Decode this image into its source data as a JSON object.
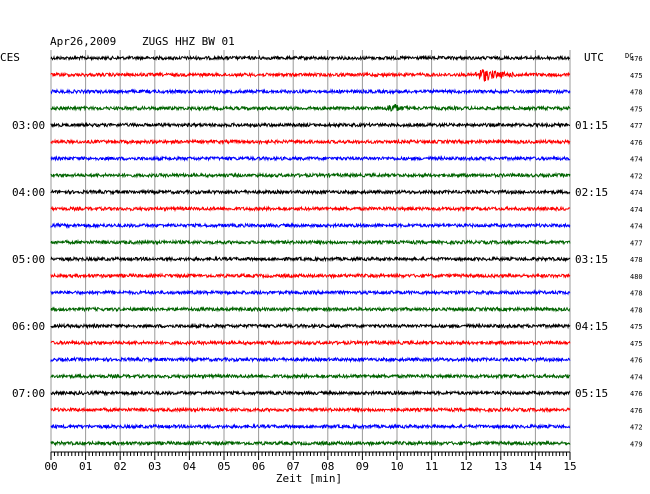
{
  "header": {
    "date": "Apr26,2009",
    "station": "ZUGS HHZ BW 01",
    "left_tz": "CES",
    "right_tz": "UTC",
    "dc_label": "DC"
  },
  "colors": {
    "cycle": [
      "#000000",
      "#ff0000",
      "#0000ff",
      "#006400"
    ],
    "grid": "#9a9a9a",
    "axis": "#000000"
  },
  "chart_data": {
    "type": "line",
    "title": "Apr26,2009  ZUGS HHZ BW 01",
    "xlabel": "Zeit [min]",
    "xlim": [
      0,
      15
    ],
    "x_ticks": [
      "00",
      "01",
      "02",
      "03",
      "04",
      "05",
      "06",
      "07",
      "08",
      "09",
      "10",
      "11",
      "12",
      "13",
      "14",
      "15"
    ],
    "trace_count": 24,
    "left_time_labels": [
      {
        "trace": 4,
        "text": "03:00"
      },
      {
        "trace": 8,
        "text": "04:00"
      },
      {
        "trace": 12,
        "text": "05:00"
      },
      {
        "trace": 16,
        "text": "06:00"
      },
      {
        "trace": 20,
        "text": "07:00"
      }
    ],
    "right_time_labels": [
      {
        "trace": 4,
        "text": "01:15"
      },
      {
        "trace": 8,
        "text": "02:15"
      },
      {
        "trace": 12,
        "text": "03:15"
      },
      {
        "trace": 16,
        "text": "04:15"
      },
      {
        "trace": 20,
        "text": "05:15"
      }
    ],
    "dc_offsets": [
      "476",
      "475",
      "478",
      "475",
      "477",
      "476",
      "474",
      "472",
      "474",
      "474",
      "474",
      "477",
      "478",
      "480",
      "478",
      "478",
      "475",
      "475",
      "476",
      "474",
      "476",
      "476",
      "472",
      "479"
    ],
    "events": [
      {
        "trace": 1,
        "start_min": 12.2,
        "end_min": 13.6,
        "peak_min": 12.5,
        "amplitude": 2.6
      },
      {
        "trace": 3,
        "start_min": 9.6,
        "end_min": 10.4,
        "peak_min": 9.9,
        "amplitude": 1.7
      }
    ]
  }
}
